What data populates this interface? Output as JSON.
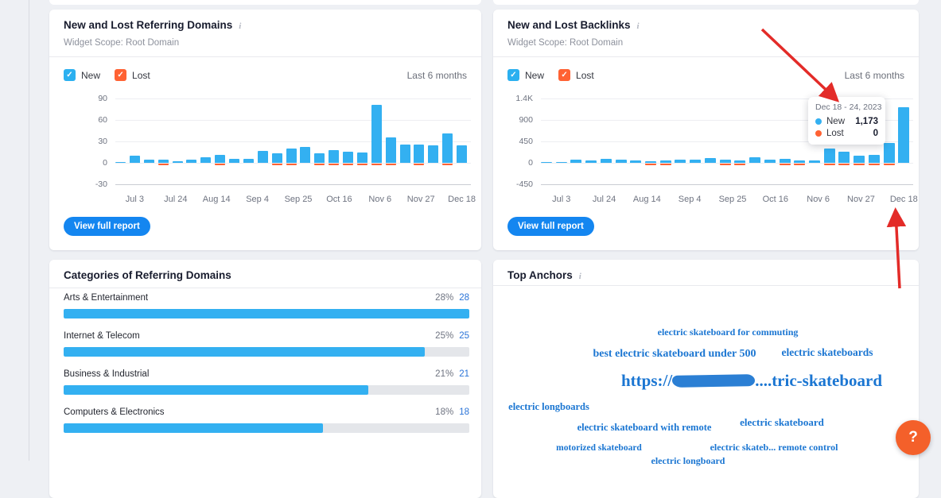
{
  "widgets": {
    "referring_domains": {
      "title": "New and Lost Referring Domains",
      "scope": "Widget Scope: Root Domain",
      "legend": {
        "new": "New",
        "lost": "Lost"
      },
      "range": "Last 6 months",
      "button": "View full report"
    },
    "backlinks": {
      "title": "New and Lost Backlinks",
      "scope": "Widget Scope: Root Domain",
      "legend": {
        "new": "New",
        "lost": "Lost"
      },
      "range": "Last 6 months",
      "button": "View full report",
      "tooltip": {
        "date": "Dec 18 - 24, 2023",
        "new_label": "New",
        "new_value": "1,173",
        "lost_label": "Lost",
        "lost_value": "0"
      }
    },
    "categories": {
      "title": "Categories of Referring Domains",
      "rows": [
        {
          "label": "Arts & Entertainment",
          "percent": "28%",
          "count": "28",
          "fill": 100
        },
        {
          "label": "Internet & Telecom",
          "percent": "25%",
          "count": "25",
          "fill": 89
        },
        {
          "label": "Business & Industrial",
          "percent": "21%",
          "count": "21",
          "fill": 75
        },
        {
          "label": "Computers & Electronics",
          "percent": "18%",
          "count": "18",
          "fill": 64
        }
      ]
    },
    "top_anchors": {
      "title": "Top Anchors",
      "anchors": [
        "electric skateboard for commuting",
        "best electric skateboard under 500",
        "electric skateboards",
        "electric longboards",
        "electric skateboard with remote",
        "electric skateboard",
        "motorized skateboard",
        "electric skateb... remote control",
        "electric longboard"
      ],
      "url_anchor": {
        "prefix": "https://",
        "suffix": "....tric-skateboard"
      }
    }
  },
  "help_button": "?",
  "colors": {
    "new_blue": "#33b0f1",
    "lost_orange": "#ff6233",
    "button_blue": "#1486f0",
    "anchor_blue": "#1b76d2",
    "annotation_red": "#e32b28",
    "help_orange": "#f4602a"
  },
  "chart_data": [
    {
      "type": "bar",
      "title": "New and Lost Referring Domains",
      "xlabel": "",
      "ylabel": "",
      "x_tick_labels": [
        "Jul 3",
        "Jul 24",
        "Aug 14",
        "Sep 4",
        "Sep 25",
        "Oct 16",
        "Nov 6",
        "Nov 27",
        "Dec 18"
      ],
      "y_tick_labels": [
        "90",
        "60",
        "30",
        "0",
        "-30"
      ],
      "ylim": [
        -30,
        90
      ],
      "grid": true,
      "legend_position": "top-left",
      "series": [
        {
          "name": "New",
          "color": "#33b0f1",
          "values": [
            1,
            10,
            4,
            4,
            2,
            5,
            8,
            11,
            6,
            6,
            17,
            13,
            20,
            22,
            13,
            18,
            16,
            15,
            81,
            36,
            26,
            26,
            25,
            41,
            25
          ]
        },
        {
          "name": "Lost",
          "color": "#ff6233",
          "values": [
            0,
            0,
            0,
            -2,
            0,
            0,
            0,
            -1,
            0,
            0,
            0,
            -1,
            -2,
            0,
            -2,
            -1,
            -2,
            -2,
            -1,
            -2,
            0,
            -2,
            0,
            -1,
            0
          ]
        }
      ]
    },
    {
      "type": "bar",
      "title": "New and Lost Backlinks",
      "xlabel": "",
      "ylabel": "",
      "x_tick_labels": [
        "Jul 3",
        "Jul 24",
        "Aug 14",
        "Sep 4",
        "Sep 25",
        "Oct 16",
        "Nov 6",
        "Nov 27",
        "Dec 18"
      ],
      "y_tick_labels": [
        "1.4K",
        "900",
        "450",
        "0",
        "-450"
      ],
      "ylim": [
        -450,
        1400
      ],
      "grid": true,
      "legend_position": "top-left",
      "highlighted_bar": {
        "label": "Dec 18 - 24, 2023",
        "new": 1173,
        "lost": 0
      },
      "series": [
        {
          "name": "New",
          "color": "#33b0f1",
          "values": [
            10,
            15,
            65,
            55,
            85,
            65,
            50,
            40,
            50,
            75,
            65,
            105,
            70,
            55,
            110,
            75,
            85,
            45,
            50,
            300,
            230,
            145,
            170,
            420,
            1173
          ]
        },
        {
          "name": "Lost",
          "color": "#ff6233",
          "values": [
            0,
            0,
            0,
            0,
            0,
            0,
            0,
            -20,
            -10,
            0,
            0,
            0,
            -20,
            -15,
            0,
            0,
            -10,
            -35,
            0,
            -10,
            -10,
            -25,
            -20,
            -10,
            0
          ]
        }
      ]
    }
  ]
}
